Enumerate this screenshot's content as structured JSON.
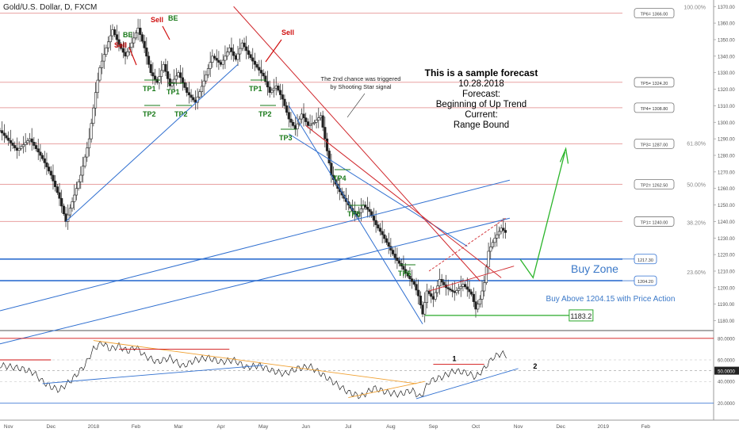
{
  "symbol_title": "Gold/U.S. Dollar, D, FXCM",
  "chart_data": {
    "type": "candlestick",
    "price_axis": {
      "ticks": [
        1180,
        1190,
        1200,
        1210,
        1220,
        1230,
        1240,
        1250,
        1260,
        1270,
        1280,
        1290,
        1300,
        1310,
        1320,
        1330,
        1340,
        1350,
        1360,
        1370
      ],
      "labels": [
        "1180.00",
        "1190.00",
        "1200.00",
        "1210.00",
        "1220.00",
        "1230.00",
        "1240.00",
        "1250.00",
        "1260.00",
        "1270.00",
        "1280.00",
        "1290.00",
        "1300.00",
        "1310.00",
        "1320.00",
        "1330.00",
        "1340.00",
        "1350.00",
        "1360.00",
        "1370.00"
      ],
      "range": [
        1175,
        1373
      ]
    },
    "time_axis": {
      "labels": [
        {
          "t": 0,
          "text": "Nov"
        },
        {
          "t": 1,
          "text": "Dec"
        },
        {
          "t": 2,
          "text": "2018"
        },
        {
          "t": 3,
          "text": "Feb"
        },
        {
          "t": 4,
          "text": "Mar"
        },
        {
          "t": 5,
          "text": "Apr"
        },
        {
          "t": 6,
          "text": "May"
        },
        {
          "t": 7,
          "text": "Jun"
        },
        {
          "t": 8,
          "text": "Jul"
        },
        {
          "t": 9,
          "text": "Aug"
        },
        {
          "t": 10,
          "text": "Sep"
        },
        {
          "t": 11,
          "text": "Oct"
        },
        {
          "t": 12,
          "text": "Nov"
        },
        {
          "t": 13,
          "text": "Dec"
        },
        {
          "t": 14,
          "text": "2019"
        },
        {
          "t": 15,
          "text": "Feb"
        }
      ],
      "range": [
        -0.2,
        16.6
      ]
    },
    "price_path": [
      [
        -0.2,
        1295
      ],
      [
        0.2,
        1283
      ],
      [
        0.5,
        1290
      ],
      [
        0.8,
        1278
      ],
      [
        1.0,
        1268
      ],
      [
        1.2,
        1254
      ],
      [
        1.35,
        1240
      ],
      [
        1.5,
        1252
      ],
      [
        1.7,
        1268
      ],
      [
        1.9,
        1290
      ],
      [
        2.05,
        1318
      ],
      [
        2.15,
        1333
      ],
      [
        2.3,
        1345
      ],
      [
        2.45,
        1356
      ],
      [
        2.6,
        1347
      ],
      [
        2.75,
        1340
      ],
      [
        2.9,
        1348
      ],
      [
        3.05,
        1357
      ],
      [
        3.2,
        1345
      ],
      [
        3.35,
        1330
      ],
      [
        3.5,
        1324
      ],
      [
        3.65,
        1335
      ],
      [
        3.8,
        1322
      ],
      [
        4.0,
        1330
      ],
      [
        4.2,
        1318
      ],
      [
        4.4,
        1312
      ],
      [
        4.6,
        1325
      ],
      [
        4.8,
        1340
      ],
      [
        5.0,
        1335
      ],
      [
        5.2,
        1345
      ],
      [
        5.35,
        1338
      ],
      [
        5.5,
        1348
      ],
      [
        5.65,
        1341
      ],
      [
        5.8,
        1335
      ],
      [
        6.0,
        1328
      ],
      [
        6.15,
        1318
      ],
      [
        6.3,
        1322
      ],
      [
        6.45,
        1314
      ],
      [
        6.6,
        1302
      ],
      [
        6.75,
        1296
      ],
      [
        6.9,
        1305
      ],
      [
        7.05,
        1298
      ],
      [
        7.2,
        1300
      ],
      [
        7.35,
        1304
      ],
      [
        7.45,
        1290
      ],
      [
        7.6,
        1268
      ],
      [
        7.75,
        1260
      ],
      [
        7.9,
        1254
      ],
      [
        8.05,
        1248
      ],
      [
        8.2,
        1243
      ],
      [
        8.35,
        1250
      ],
      [
        8.5,
        1246
      ],
      [
        8.65,
        1238
      ],
      [
        8.8,
        1232
      ],
      [
        8.95,
        1225
      ],
      [
        9.1,
        1218
      ],
      [
        9.25,
        1213
      ],
      [
        9.4,
        1207
      ],
      [
        9.55,
        1202
      ],
      [
        9.65,
        1195
      ],
      [
        9.75,
        1184
      ],
      [
        9.85,
        1198
      ],
      [
        10.0,
        1193
      ],
      [
        10.15,
        1205
      ],
      [
        10.3,
        1200
      ],
      [
        10.5,
        1197
      ],
      [
        10.7,
        1202
      ],
      [
        10.9,
        1196
      ],
      [
        11.0,
        1187
      ],
      [
        11.1,
        1193
      ],
      [
        11.2,
        1203
      ],
      [
        11.3,
        1222
      ],
      [
        11.45,
        1230
      ],
      [
        11.6,
        1236
      ],
      [
        11.75,
        1232
      ]
    ],
    "horizontal_levels": [
      {
        "price": 1366.0,
        "label": "TP6= 1366.00"
      },
      {
        "price": 1324.2,
        "label": "TP5= 1324.20"
      },
      {
        "price": 1308.8,
        "label": "TP4= 1308.80"
      },
      {
        "price": 1287.0,
        "label": "TP3= 1287.00"
      },
      {
        "price": 1262.5,
        "label": "TP2= 1262.50"
      },
      {
        "price": 1240.0,
        "label": "TP1= 1240.00"
      },
      {
        "price": 1217.3,
        "label": "1217.30"
      },
      {
        "price": 1204.2,
        "label": "1204.20"
      }
    ],
    "fib_levels": [
      {
        "price": 1370.0,
        "label": "100.00%"
      },
      {
        "price": 1287.5,
        "label": "61.80%"
      },
      {
        "price": 1262.6,
        "label": "50.00%"
      },
      {
        "price": 1239.5,
        "label": "38.20%"
      },
      {
        "price": 1209.5,
        "label": "23.60%"
      }
    ],
    "support_level": {
      "price": 1183.2,
      "label": "1183.2"
    },
    "rsi": {
      "ticks": [
        20,
        40,
        50,
        60,
        80
      ],
      "labels": [
        "20.0000",
        "40.0000",
        "50.0000",
        "60.0000",
        "80.0000"
      ],
      "current": "50.0000",
      "range": [
        10,
        85
      ],
      "path": [
        [
          -0.2,
          55
        ],
        [
          0.3,
          52
        ],
        [
          0.6,
          48
        ],
        [
          0.8,
          40
        ],
        [
          1.0,
          35
        ],
        [
          1.2,
          32
        ],
        [
          1.5,
          42
        ],
        [
          1.8,
          55
        ],
        [
          2.0,
          70
        ],
        [
          2.2,
          76
        ],
        [
          2.4,
          70
        ],
        [
          2.6,
          73
        ],
        [
          2.8,
          68
        ],
        [
          3.0,
          72
        ],
        [
          3.2,
          64
        ],
        [
          3.5,
          58
        ],
        [
          3.8,
          62
        ],
        [
          4.1,
          54
        ],
        [
          4.4,
          60
        ],
        [
          4.7,
          62
        ],
        [
          5.0,
          58
        ],
        [
          5.3,
          60
        ],
        [
          5.6,
          53
        ],
        [
          5.9,
          55
        ],
        [
          6.2,
          50
        ],
        [
          6.5,
          47
        ],
        [
          6.8,
          52
        ],
        [
          7.1,
          54
        ],
        [
          7.4,
          46
        ],
        [
          7.7,
          38
        ],
        [
          8.0,
          30
        ],
        [
          8.3,
          26
        ],
        [
          8.6,
          34
        ],
        [
          8.9,
          30
        ],
        [
          9.2,
          28
        ],
        [
          9.5,
          32
        ],
        [
          9.7,
          25
        ],
        [
          9.9,
          40
        ],
        [
          10.2,
          44
        ],
        [
          10.5,
          50
        ],
        [
          10.8,
          48
        ],
        [
          11.0,
          44
        ],
        [
          11.2,
          52
        ],
        [
          11.4,
          62
        ],
        [
          11.6,
          66
        ],
        [
          11.75,
          64
        ]
      ]
    }
  },
  "annotations": {
    "forecast": [
      "This is a sample forecast",
      "10.28.2018",
      "Forecast:",
      "Beginning of Up Trend",
      "Current:",
      "Range Bound"
    ],
    "shooting_star": [
      "The 2nd chance was triggered",
      "by Shooting Star signal"
    ],
    "buy_zone": "Buy Zone",
    "buy_above": "Buy Above 1204.15 with Price Action",
    "signals": {
      "sell": "Sell",
      "be": "BE",
      "tp1": "TP1",
      "tp2": "TP2",
      "tp3": "TP3",
      "tp4": "TP4",
      "tp5": "TP5",
      "tp6": "TP6"
    },
    "rsi_marks": {
      "one": "1",
      "two": "2"
    }
  },
  "colors": {
    "sell": "#d01010",
    "signal_green": "#1a7a1a",
    "trend_blue": "#2f6fd0",
    "resistance_red": "#d0282d",
    "up_arrow": "#2bb52b",
    "level_line": "#e8a0a0",
    "forecast_blue": "#3a78c8",
    "rsi_orange": "#f0a030"
  }
}
